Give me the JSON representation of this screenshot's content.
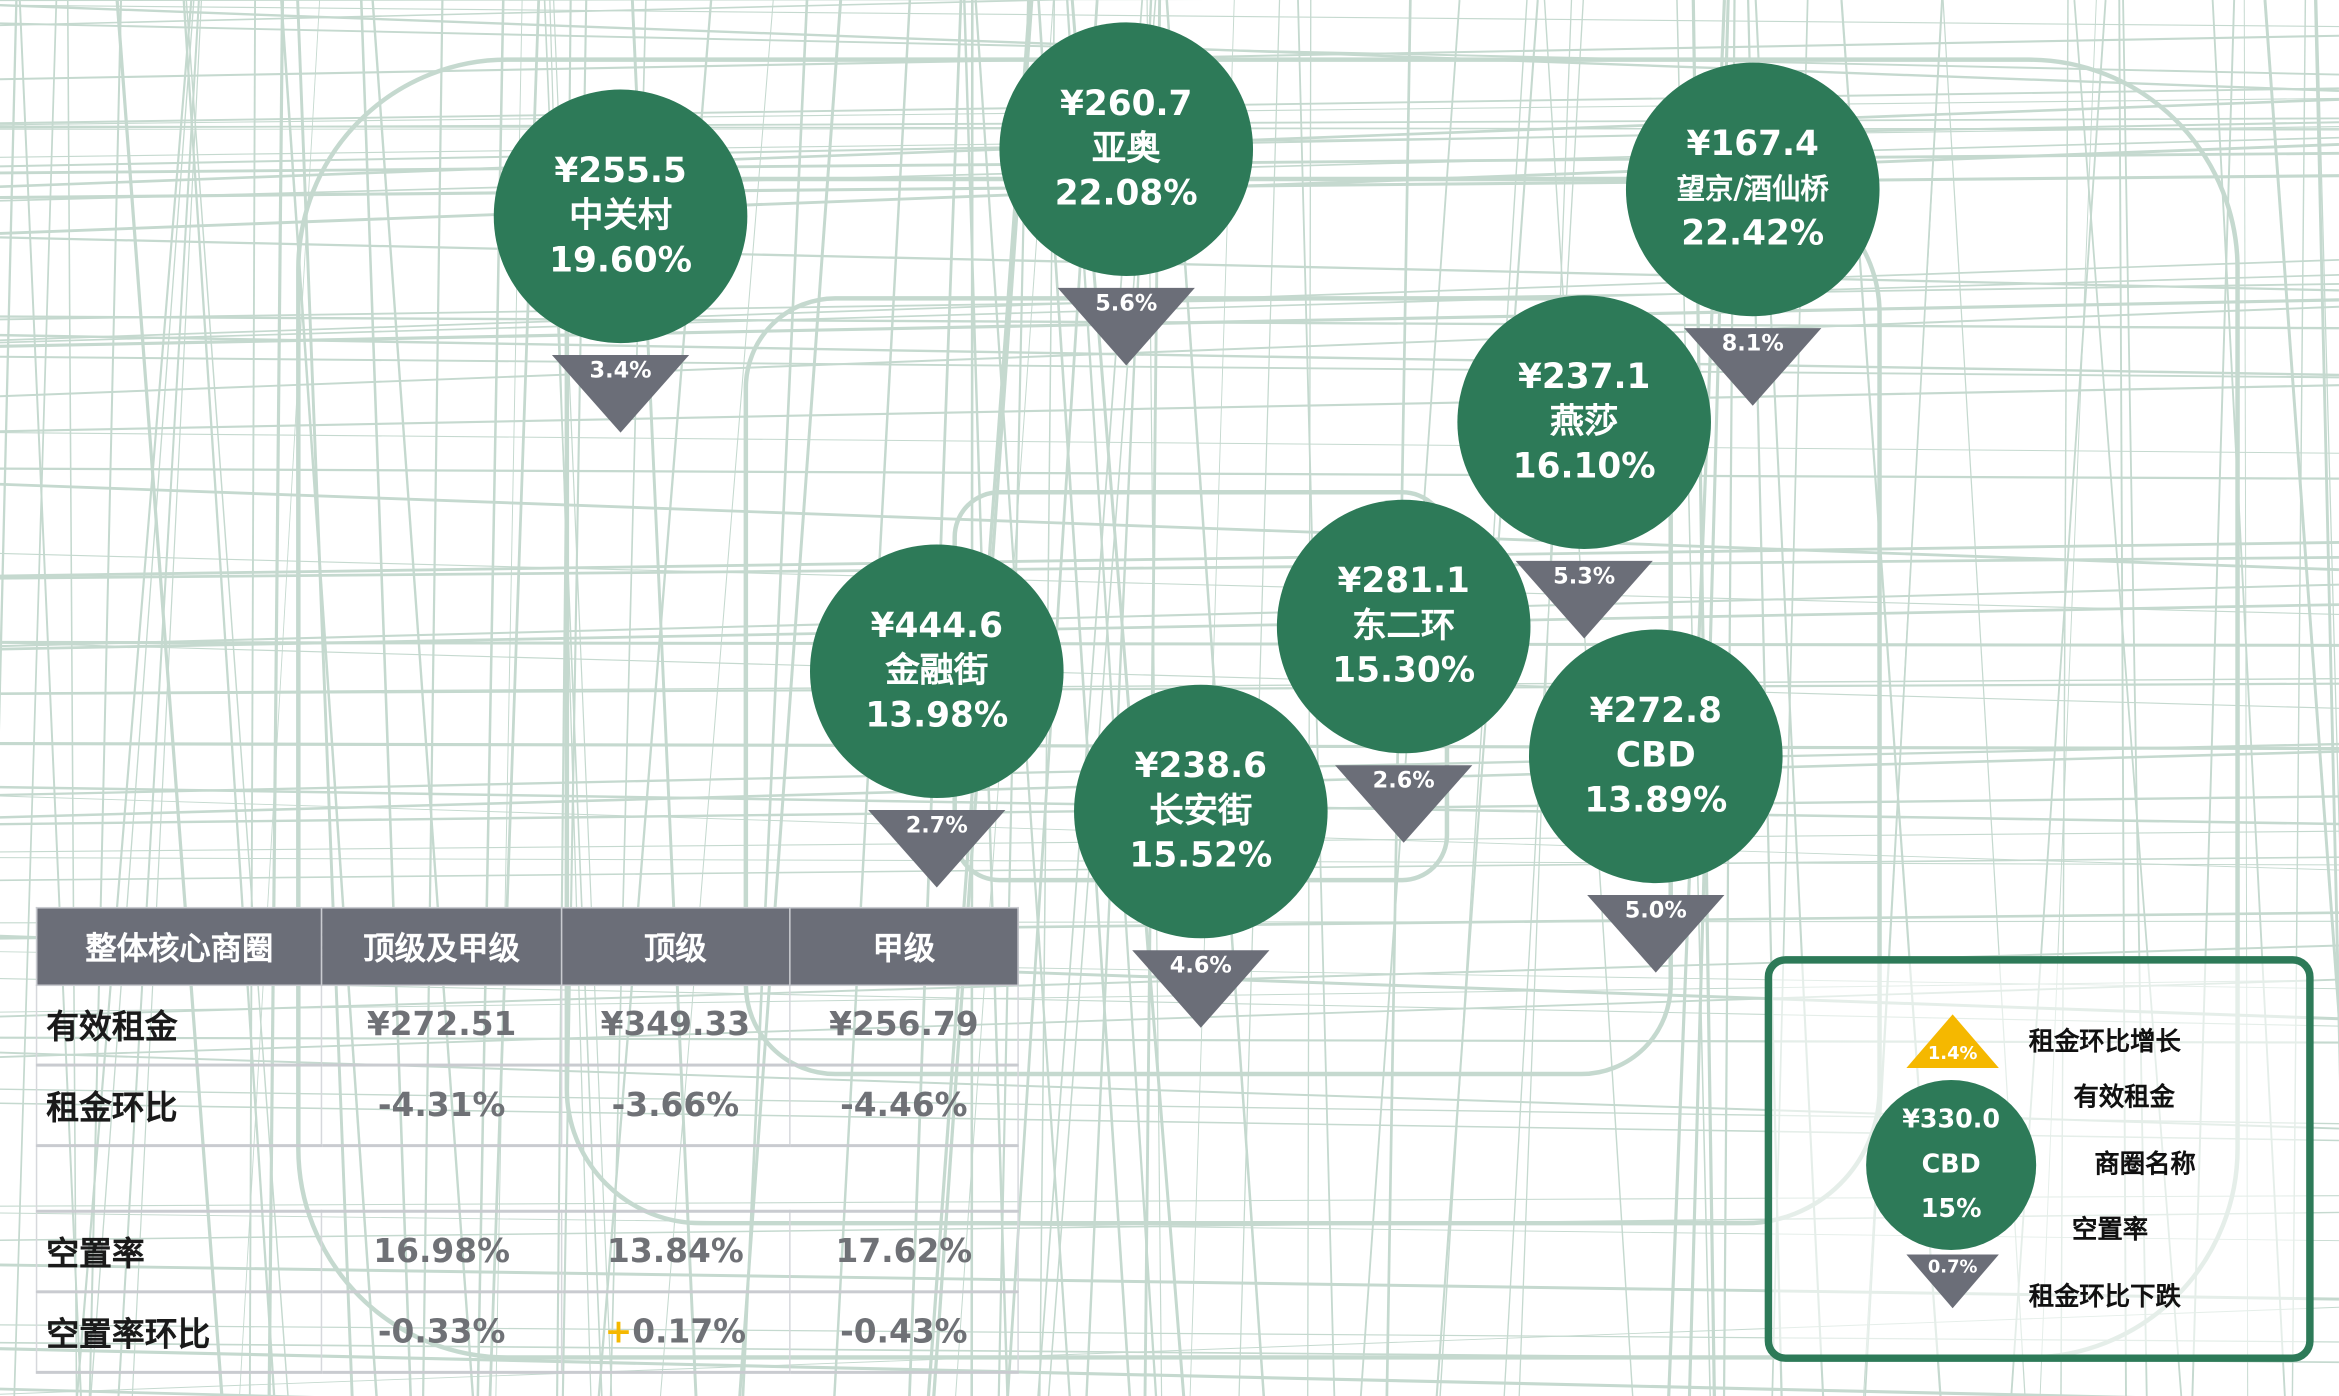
{
  "colors": {
    "bubble": "#2d7a58",
    "down": "#6b6e78",
    "up": "#f5b800",
    "road": "#c5d9cf"
  },
  "districts": [
    {
      "rent": "¥255.5",
      "name": "中关村",
      "vacancy": "19.60%",
      "change": "3.4%",
      "direction": "down"
    },
    {
      "rent": "¥260.7",
      "name": "亚奥",
      "vacancy": "22.08%",
      "change": "5.6%",
      "direction": "down"
    },
    {
      "rent": "¥167.4",
      "name": "望京/酒仙桥",
      "vacancy": "22.42%",
      "change": "8.1%",
      "direction": "down"
    },
    {
      "rent": "¥237.1",
      "name": "燕莎",
      "vacancy": "16.10%",
      "change": "5.3%",
      "direction": "down"
    },
    {
      "rent": "¥281.1",
      "name": "东二环",
      "vacancy": "15.30%",
      "change": "2.6%",
      "direction": "down"
    },
    {
      "rent": "¥444.6",
      "name": "金融街",
      "vacancy": "13.98%",
      "change": "2.7%",
      "direction": "down"
    },
    {
      "rent": "¥238.6",
      "name": "长安街",
      "vacancy": "15.52%",
      "change": "4.6%",
      "direction": "down"
    },
    {
      "rent": "¥272.8",
      "name": "CBD",
      "vacancy": "13.89%",
      "change": "5.0%",
      "direction": "down"
    }
  ],
  "table": {
    "headers": [
      "整体核心商圈",
      "顶级及甲级",
      "顶级",
      "甲级"
    ],
    "rows": [
      {
        "label": "有效租金",
        "values": [
          "¥272.51",
          "¥349.33",
          "¥256.79"
        ]
      },
      {
        "label": "租金环比",
        "values": [
          "-4.31%",
          "-3.66%",
          "-4.46%"
        ]
      },
      {
        "label": "空置率",
        "values": [
          "16.98%",
          "13.84%",
          "17.62%"
        ]
      },
      {
        "label": "空置率环比",
        "values": [
          "-0.33%",
          "0.17%",
          "-0.43%"
        ],
        "plus_sign": "+"
      }
    ]
  },
  "legend": {
    "up_value": "1.4%",
    "down_value": "0.7%",
    "sample_rent": "¥330.0",
    "sample_name": "CBD",
    "sample_vacancy": "15%",
    "labels": {
      "up": "租金环比增长",
      "rent": "有效租金",
      "name": "商圈名称",
      "vacancy": "空置率",
      "down": "租金环比下跌"
    }
  }
}
